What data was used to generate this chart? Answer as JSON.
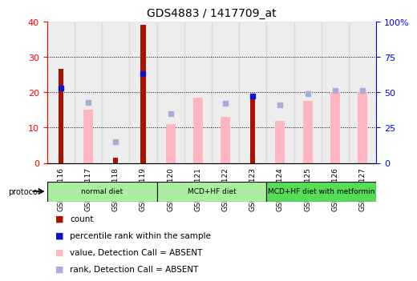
{
  "title": "GDS4883 / 1417709_at",
  "samples": [
    "GSM878116",
    "GSM878117",
    "GSM878118",
    "GSM878119",
    "GSM878120",
    "GSM878121",
    "GSM878122",
    "GSM878123",
    "GSM878124",
    "GSM878125",
    "GSM878126",
    "GSM878127"
  ],
  "count_values": [
    26.5,
    0,
    1.5,
    39,
    0,
    0,
    0,
    18,
    0,
    0,
    0,
    0
  ],
  "value_absent": [
    0,
    15,
    0,
    0,
    11,
    18.5,
    13,
    0,
    12,
    17.5,
    20,
    20
  ],
  "percentile_rank": [
    53,
    0,
    0,
    63,
    0,
    0,
    0,
    47,
    0,
    0,
    0,
    0
  ],
  "rank_absent": [
    0,
    43,
    15,
    0,
    35,
    0,
    42,
    0,
    41,
    49,
    51,
    51
  ],
  "protocols": [
    {
      "label": "normal diet",
      "start": 0,
      "end": 4
    },
    {
      "label": "MCD+HF diet",
      "start": 4,
      "end": 8
    },
    {
      "label": "MCD+HF diet with metformin",
      "start": 8,
      "end": 12
    }
  ],
  "protocol_colors": [
    "#98EE90",
    "#98EE90",
    "#50DD50"
  ],
  "ylim_left": [
    0,
    40
  ],
  "ylim_right": [
    0,
    100
  ],
  "yticks_left": [
    0,
    10,
    20,
    30,
    40
  ],
  "yticks_right": [
    0,
    25,
    50,
    75,
    100
  ],
  "yticklabels_right": [
    "0",
    "25",
    "50",
    "75",
    "100%"
  ],
  "count_color": "#AA1100",
  "value_absent_color": "#FFB6C1",
  "percentile_rank_color": "#1111CC",
  "rank_absent_color": "#AAAADD",
  "legend_items": [
    {
      "label": "count",
      "color": "#AA1100"
    },
    {
      "label": "percentile rank within the sample",
      "color": "#1111CC"
    },
    {
      "label": "value, Detection Call = ABSENT",
      "color": "#FFB6C1"
    },
    {
      "label": "rank, Detection Call = ABSENT",
      "color": "#AAAADD"
    }
  ]
}
